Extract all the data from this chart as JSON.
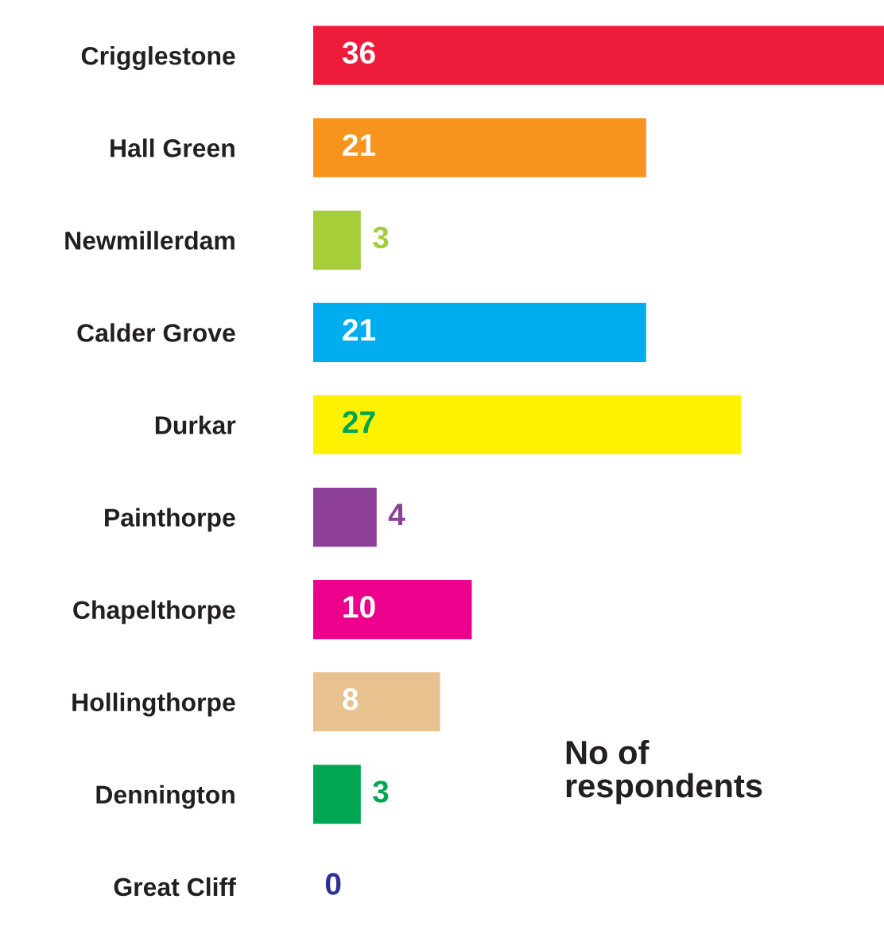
{
  "chart_data": {
    "type": "bar",
    "orientation": "horizontal",
    "categories": [
      "Crigglestone",
      "Hall Green",
      "Newmillerdam",
      "Calder Grove",
      "Durkar",
      "Painthorpe",
      "Chapelthorpe",
      "Hollingthorpe",
      "Dennington",
      "Great Cliff"
    ],
    "values": [
      36,
      21,
      3,
      21,
      27,
      4,
      10,
      8,
      3,
      0
    ],
    "colors": [
      "#ee1c3b",
      "#f7941d",
      "#a6ce39",
      "#00aeef",
      "#fff200",
      "#8e3f98",
      "#ec008c",
      "#e8c28e",
      "#00a651",
      "#2e3192"
    ],
    "xlim": [
      0,
      36
    ],
    "tick_labels": "y",
    "data_labels": true,
    "grid": false,
    "annotations": [
      "No of\nrespondents"
    ]
  }
}
